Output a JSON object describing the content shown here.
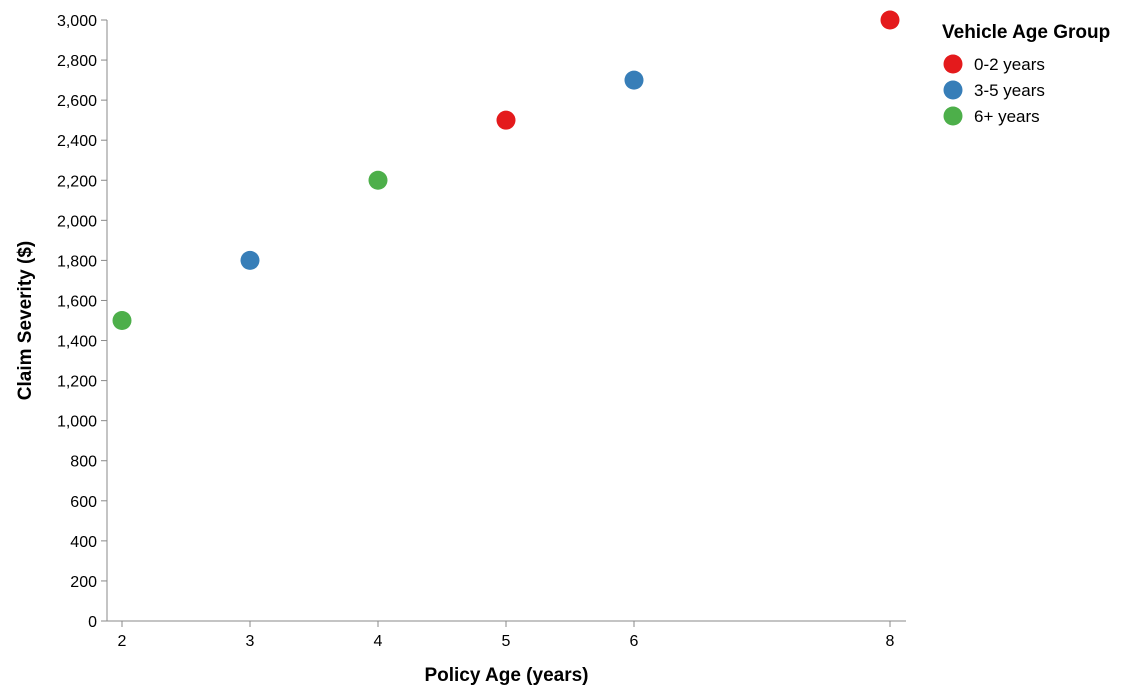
{
  "chart_data": {
    "type": "scatter",
    "title": "",
    "xlabel": "Policy Age (years)",
    "ylabel": "Claim Severity ($)",
    "xlim": [
      2,
      8
    ],
    "ylim": [
      0,
      3000
    ],
    "x_ticks": [
      2,
      3,
      4,
      5,
      6,
      8
    ],
    "y_ticks": [
      0,
      200,
      400,
      600,
      800,
      1000,
      1200,
      1400,
      1600,
      1800,
      2000,
      2200,
      2400,
      2600,
      2800,
      3000
    ],
    "grid": false,
    "legend": {
      "title": "Vehicle Age Group",
      "placement": "top-right"
    },
    "series": [
      {
        "name": "0-2 years",
        "color": "#e41a1c",
        "points": [
          {
            "x": 5,
            "y": 2500
          },
          {
            "x": 8,
            "y": 3000
          }
        ]
      },
      {
        "name": "3-5 years",
        "color": "#377eb8",
        "points": [
          {
            "x": 3,
            "y": 1800
          },
          {
            "x": 6,
            "y": 2700
          }
        ]
      },
      {
        "name": "6+ years",
        "color": "#4daf4a",
        "points": [
          {
            "x": 2,
            "y": 1500
          },
          {
            "x": 4,
            "y": 2200
          }
        ]
      }
    ]
  }
}
